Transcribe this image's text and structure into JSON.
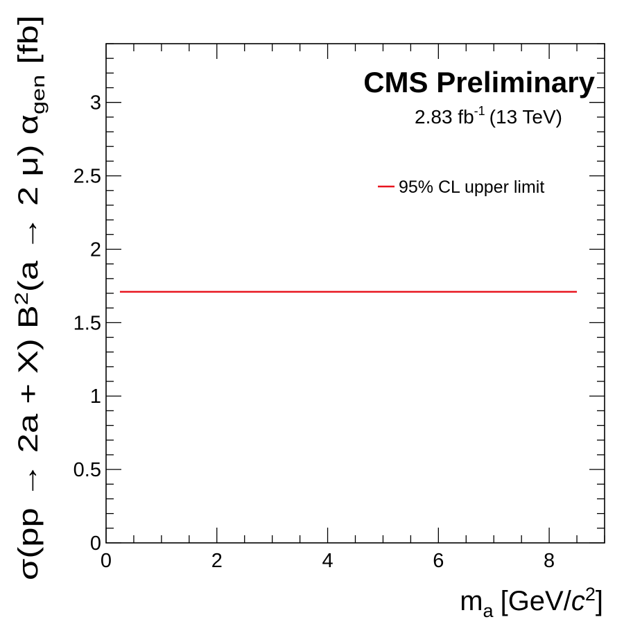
{
  "chart_data": {
    "type": "line",
    "title": "CMS Preliminary",
    "subtitle": {
      "lumi_value": "2.83 fb",
      "lumi_exp": "-1",
      "energy": "(13 TeV)"
    },
    "xlabel": {
      "m": "m",
      "m_sub": "a",
      "unit_open": "[GeV/",
      "c": "c",
      "c_exp": "2",
      "unit_close": "]"
    },
    "ylabel": {
      "part1": "σ(pp → 2a + X) B",
      "b_exp": "2",
      "part2": "(a → 2 μ) α",
      "alpha_sub": "gen",
      "unit": "[fb]"
    },
    "xlim": [
      0,
      9
    ],
    "ylim": [
      0,
      3.4
    ],
    "x_ticks": [
      "0",
      "2",
      "4",
      "6",
      "8"
    ],
    "x_tick_values": [
      0,
      2,
      4,
      6,
      8
    ],
    "y_ticks": [
      "0",
      "0.5",
      "1",
      "1.5",
      "2",
      "2.5",
      "3"
    ],
    "y_tick_values": [
      0,
      0.5,
      1,
      1.5,
      2,
      2.5,
      3
    ],
    "legend_position": "top-right",
    "series": [
      {
        "name": "95% CL upper limit",
        "color": "#e8141e",
        "x": [
          0.25,
          8.5
        ],
        "y": [
          1.71,
          1.71
        ]
      }
    ]
  }
}
